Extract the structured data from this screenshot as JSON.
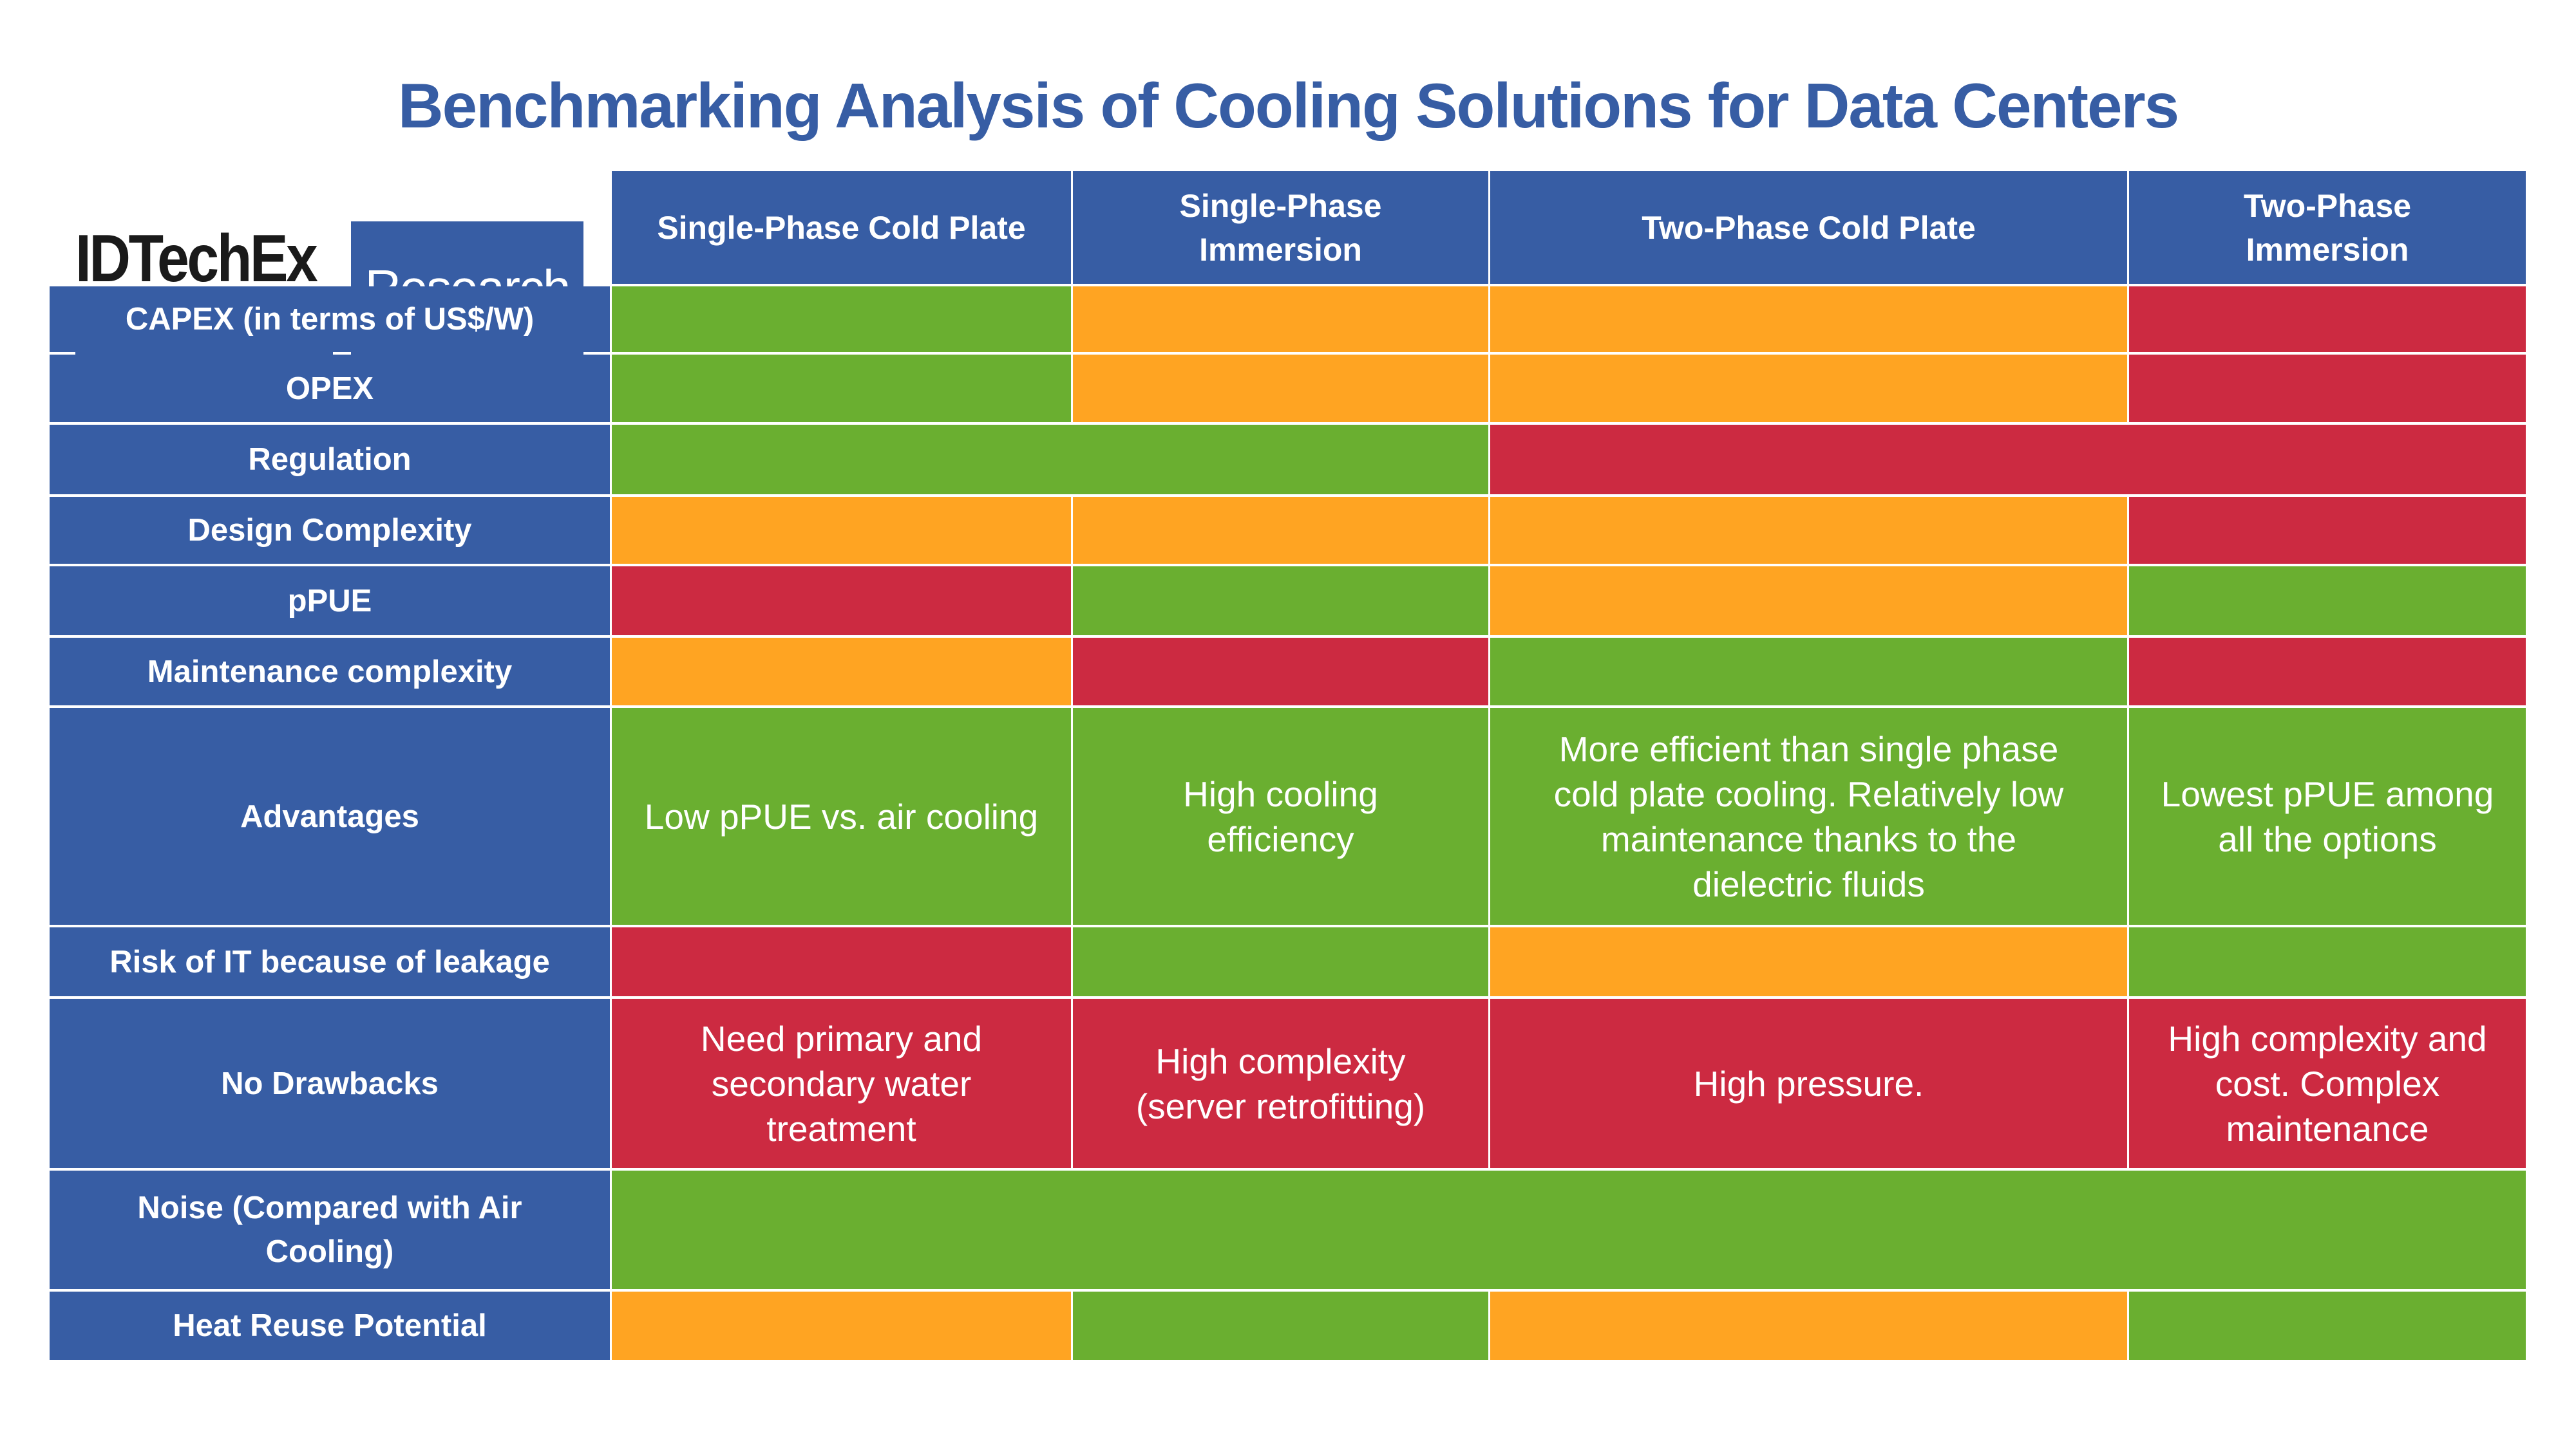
{
  "title": "Benchmarking Analysis of Cooling Solutions for Data Centers",
  "logo": {
    "brand": "IDTechEx",
    "tagline": "Research"
  },
  "colors": {
    "header": "#375DA4",
    "good": "#6AAF30",
    "medium": "#FFA422",
    "poor": "#CC2A41"
  },
  "columns": [
    "Single-Phase Cold Plate",
    "Single-Phase Immersion",
    "Two-Phase Cold Plate",
    "Two-Phase Immersion"
  ],
  "rows": [
    {
      "label": "CAPEX (in terms of US$/W)",
      "cells": [
        {
          "rating": "good",
          "text": ""
        },
        {
          "rating": "medium",
          "text": ""
        },
        {
          "rating": "medium",
          "text": ""
        },
        {
          "rating": "poor",
          "text": ""
        }
      ]
    },
    {
      "label": "OPEX",
      "cells": [
        {
          "rating": "good",
          "text": ""
        },
        {
          "rating": "medium",
          "text": ""
        },
        {
          "rating": "medium",
          "text": ""
        },
        {
          "rating": "poor",
          "text": ""
        }
      ]
    },
    {
      "label": "Regulation",
      "cells": [
        {
          "rating": "good",
          "text": "",
          "span": 2
        },
        {
          "rating": "poor",
          "text": "",
          "span": 2
        }
      ]
    },
    {
      "label": "Design Complexity",
      "cells": [
        {
          "rating": "medium",
          "text": ""
        },
        {
          "rating": "medium",
          "text": ""
        },
        {
          "rating": "medium",
          "text": ""
        },
        {
          "rating": "poor",
          "text": ""
        }
      ]
    },
    {
      "label": "pPUE",
      "cells": [
        {
          "rating": "poor",
          "text": ""
        },
        {
          "rating": "good",
          "text": ""
        },
        {
          "rating": "medium",
          "text": ""
        },
        {
          "rating": "good",
          "text": ""
        }
      ]
    },
    {
      "label": "Maintenance complexity",
      "cells": [
        {
          "rating": "medium",
          "text": ""
        },
        {
          "rating": "poor",
          "text": ""
        },
        {
          "rating": "good",
          "text": ""
        },
        {
          "rating": "poor",
          "text": ""
        }
      ]
    },
    {
      "label": "Advantages",
      "cells": [
        {
          "rating": "good",
          "text": "Low pPUE vs. air cooling"
        },
        {
          "rating": "good",
          "text": "High cooling efficiency"
        },
        {
          "rating": "good",
          "text": "More efficient than single phase cold plate cooling. Relatively low maintenance thanks to the dielectric fluids"
        },
        {
          "rating": "good",
          "text": "Lowest pPUE among all the options"
        }
      ]
    },
    {
      "label": "Risk of IT because of leakage",
      "cells": [
        {
          "rating": "poor",
          "text": ""
        },
        {
          "rating": "good",
          "text": ""
        },
        {
          "rating": "medium",
          "text": ""
        },
        {
          "rating": "good",
          "text": ""
        }
      ]
    },
    {
      "label": "No Drawbacks",
      "cells": [
        {
          "rating": "poor",
          "text": "Need primary and secondary water treatment"
        },
        {
          "rating": "poor",
          "text": "High complexity (server retrofitting)"
        },
        {
          "rating": "poor",
          "text": "High pressure."
        },
        {
          "rating": "poor",
          "text": "High complexity and cost. Complex maintenance"
        }
      ]
    },
    {
      "label": "Noise (Compared with Air Cooling)",
      "cells": [
        {
          "rating": "good",
          "text": "",
          "span": 4
        }
      ]
    },
    {
      "label": "Heat Reuse Potential",
      "cells": [
        {
          "rating": "medium",
          "text": ""
        },
        {
          "rating": "good",
          "text": ""
        },
        {
          "rating": "medium",
          "text": ""
        },
        {
          "rating": "good",
          "text": ""
        }
      ]
    }
  ]
}
